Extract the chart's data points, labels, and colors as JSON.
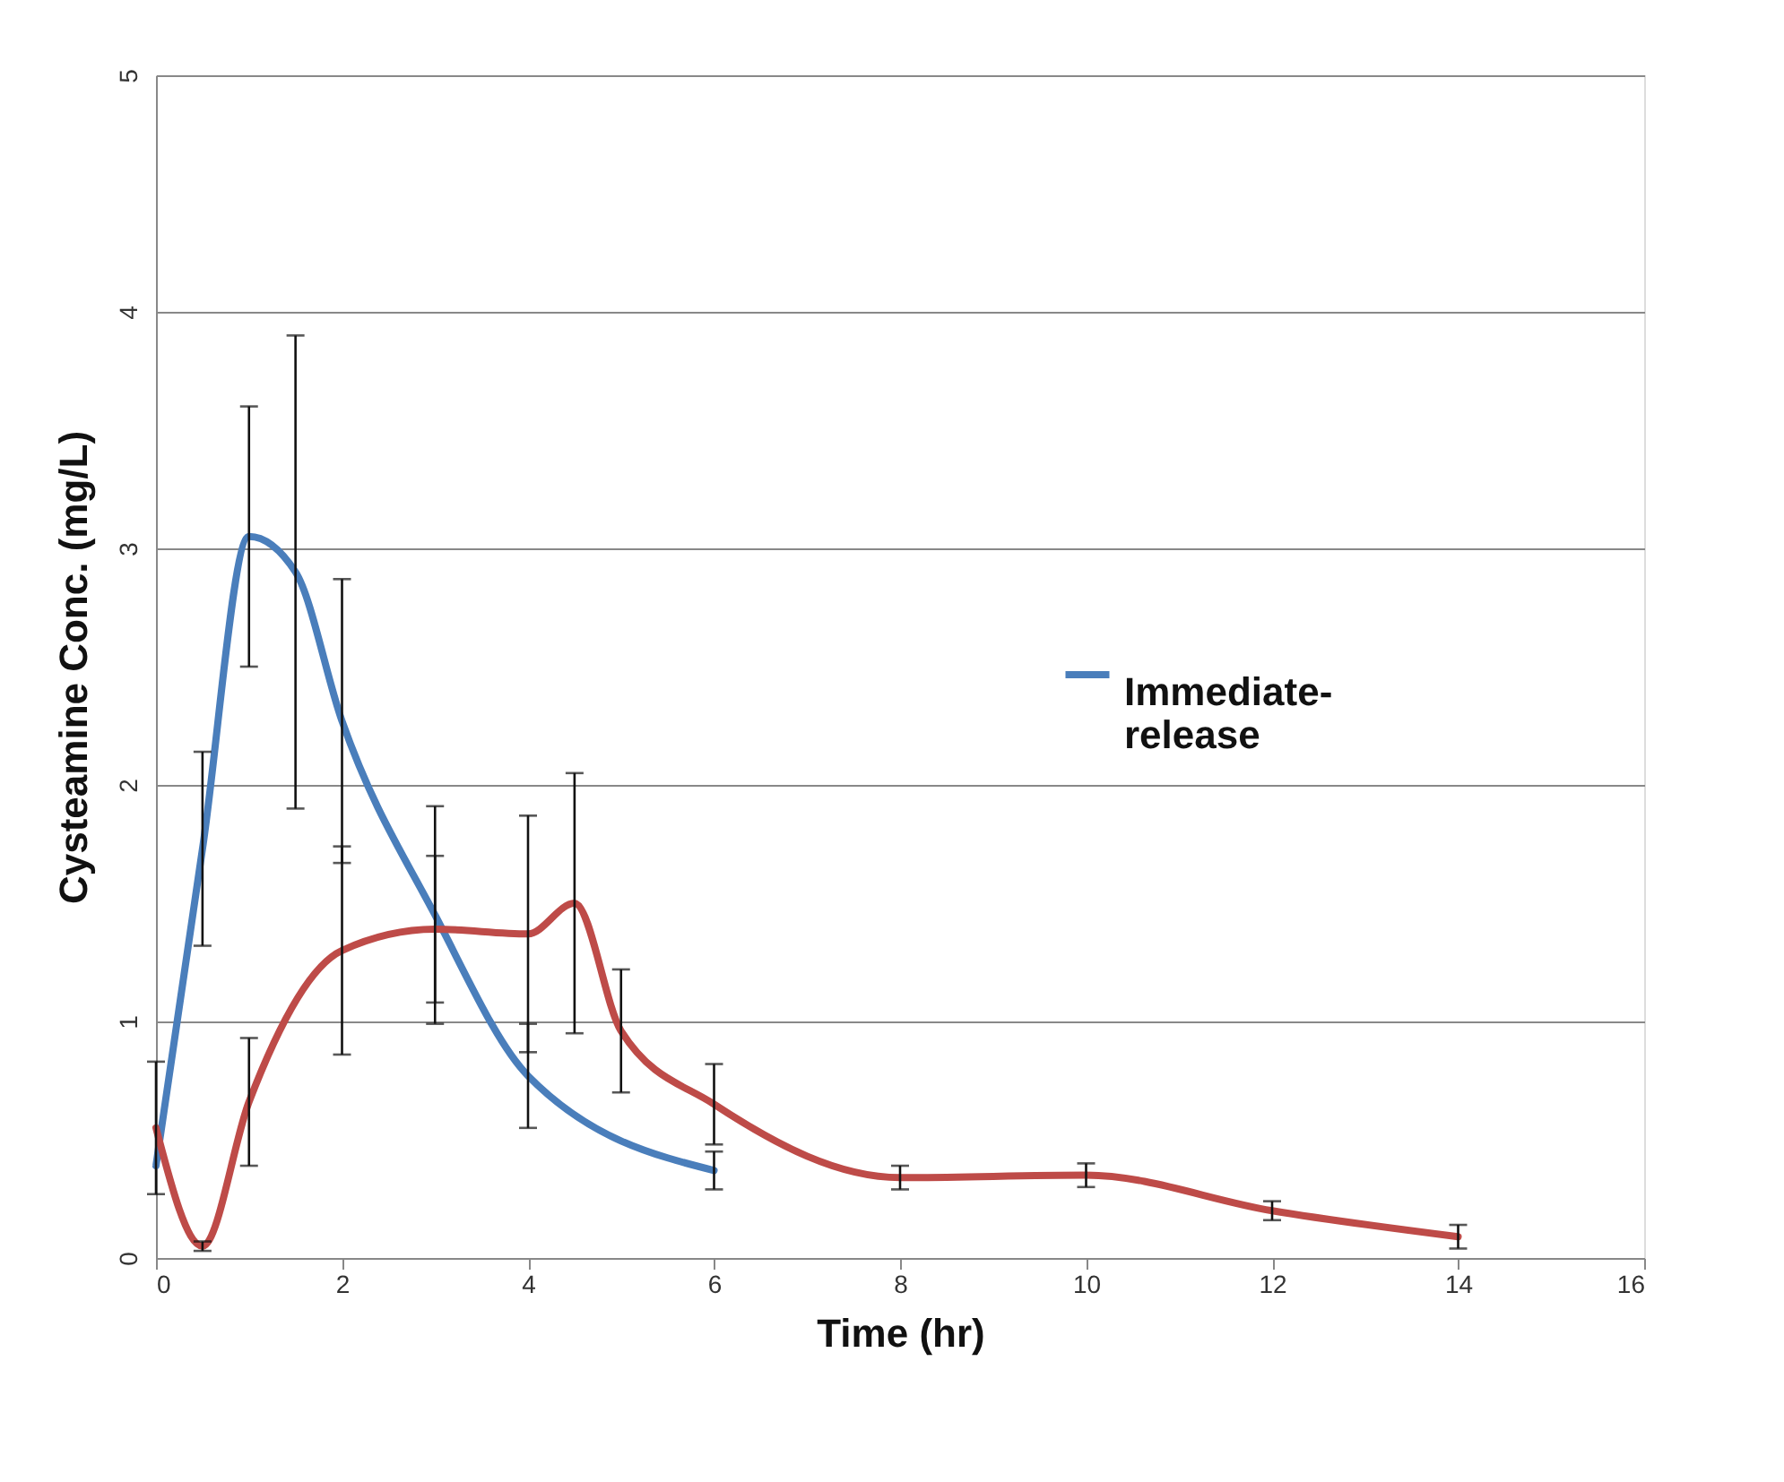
{
  "chart_data": {
    "type": "line",
    "xlabel": "Time (hr)",
    "ylabel": "Cysteamine Conc. (mg/L)",
    "xlim": [
      0,
      16
    ],
    "xticks": [
      0,
      2,
      4,
      6,
      8,
      10,
      12,
      14,
      16
    ],
    "ylim": [
      0,
      5
    ],
    "yticks": [
      0,
      1,
      2,
      3,
      4,
      5
    ],
    "grid": "y",
    "legend": "right",
    "marker": "none",
    "line_style": "solid",
    "series": [
      {
        "name": "Immediate-release",
        "color": "#4a7ebb",
        "x": [
          0,
          0.5,
          1,
          1.5,
          2,
          3,
          4,
          6
        ],
        "values": [
          0.39,
          1.73,
          3.05,
          2.9,
          2.27,
          1.45,
          0.77,
          0.37
        ],
        "errors": [
          null,
          0.41,
          0.55,
          1.0,
          0.6,
          0.46,
          0.22,
          0.08
        ]
      },
      {
        "color": "#be4b48",
        "x": [
          0,
          0.5,
          1,
          2,
          3,
          4,
          4.5,
          5,
          6,
          8,
          10,
          12,
          14
        ],
        "values": [
          0.55,
          0.05,
          0.66,
          1.3,
          1.39,
          1.37,
          1.5,
          0.96,
          0.65,
          0.34,
          0.35,
          0.2,
          0.09
        ],
        "errors": [
          0.28,
          0.02,
          0.27,
          0.44,
          0.31,
          0.5,
          0.55,
          0.26,
          0.17,
          0.05,
          0.05,
          0.04,
          0.05
        ]
      }
    ]
  }
}
